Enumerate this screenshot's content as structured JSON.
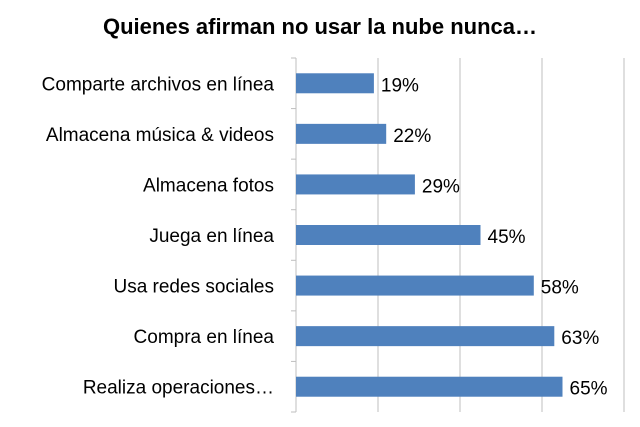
{
  "chart_data": {
    "type": "bar",
    "orientation": "horizontal",
    "title": "Quienes afirman no usar la nube nunca…",
    "categories": [
      "Comparte archivos en línea",
      "Almacena música & videos",
      "Almacena fotos",
      "Juega en línea",
      "Usa redes sociales",
      "Compra en línea",
      "Realiza operaciones…"
    ],
    "values": [
      19,
      22,
      29,
      45,
      58,
      63,
      65
    ],
    "value_labels": [
      "19%",
      "22%",
      "29%",
      "45%",
      "58%",
      "63%",
      "65%"
    ],
    "xlim": [
      0,
      80
    ],
    "grid": "vertical",
    "legend": "none",
    "bar_color": "#4F81BD",
    "grid_color": "#BFBFBF"
  }
}
